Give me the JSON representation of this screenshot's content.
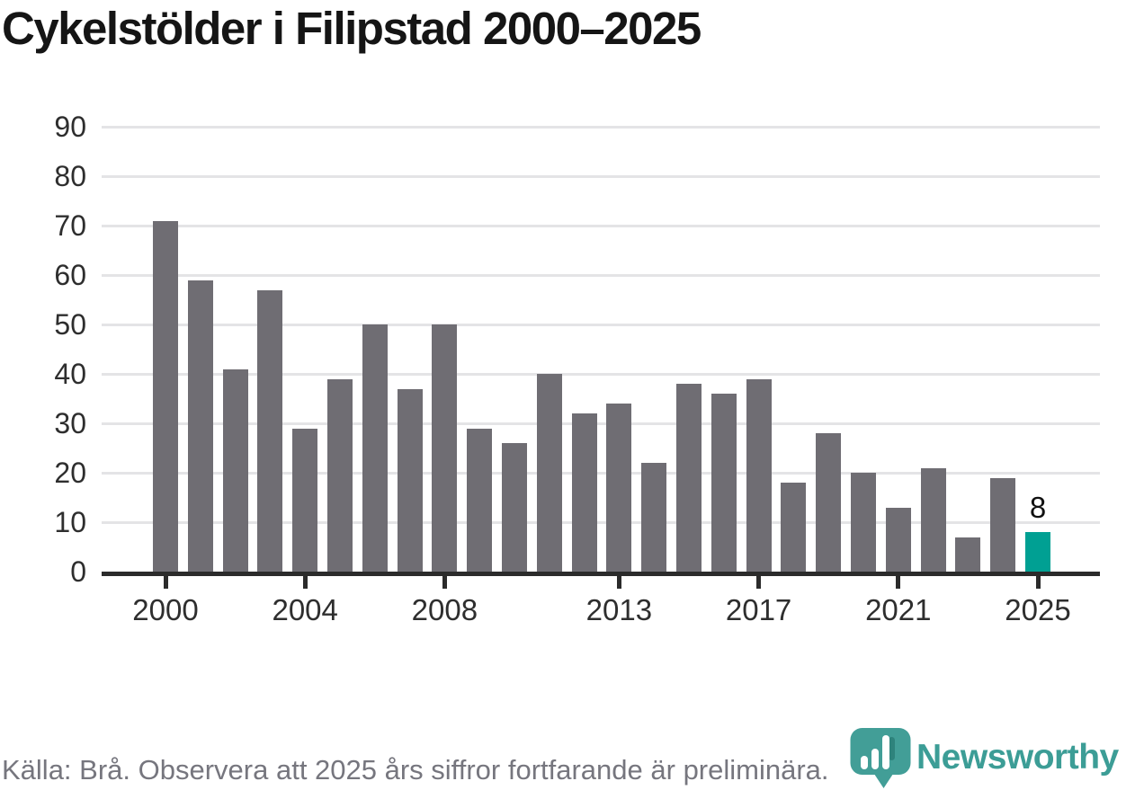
{
  "title": "Cykelstölder i Filipstad 2000–2025",
  "source_note": "Källa: Brå. Observera att 2025 års siffror fortfarande är preliminära.",
  "logo": {
    "text": "Newsworthy",
    "icon": "bar-chart-pin-icon"
  },
  "colors": {
    "bar": "#6f6d73",
    "highlight": "#00a093",
    "grid": "#e4e4e6",
    "axis": "#2b2b2b",
    "tick_label": "#2e2e2e",
    "title": "#151515",
    "source": "#76767e",
    "logo_teal": "#3c9d96"
  },
  "chart_data": {
    "type": "bar",
    "title": "Cykelstölder i Filipstad 2000–2025",
    "xlabel": "",
    "ylabel": "",
    "x": [
      2000,
      2001,
      2002,
      2003,
      2004,
      2005,
      2006,
      2007,
      2008,
      2009,
      2010,
      2011,
      2012,
      2013,
      2014,
      2015,
      2016,
      2017,
      2018,
      2019,
      2020,
      2021,
      2022,
      2023,
      2024,
      2025
    ],
    "values": [
      71,
      59,
      41,
      57,
      29,
      39,
      50,
      37,
      50,
      29,
      26,
      40,
      32,
      34,
      22,
      38,
      36,
      39,
      18,
      28,
      20,
      13,
      21,
      7,
      19,
      8
    ],
    "highlight_index": 25,
    "bar_label": {
      "index": 25,
      "text": "8"
    },
    "yticks": [
      0,
      10,
      20,
      30,
      40,
      50,
      60,
      70,
      80,
      90
    ],
    "ylim": [
      0,
      90
    ],
    "xticks": [
      {
        "index": 0,
        "label": "2000"
      },
      {
        "index": 4,
        "label": "2004"
      },
      {
        "index": 8,
        "label": "2008"
      },
      {
        "index": 13,
        "label": "2013"
      },
      {
        "index": 17,
        "label": "2017"
      },
      {
        "index": 21,
        "label": "2021"
      },
      {
        "index": 25,
        "label": "2025"
      }
    ],
    "grid": "horizontal",
    "legend": "none"
  }
}
